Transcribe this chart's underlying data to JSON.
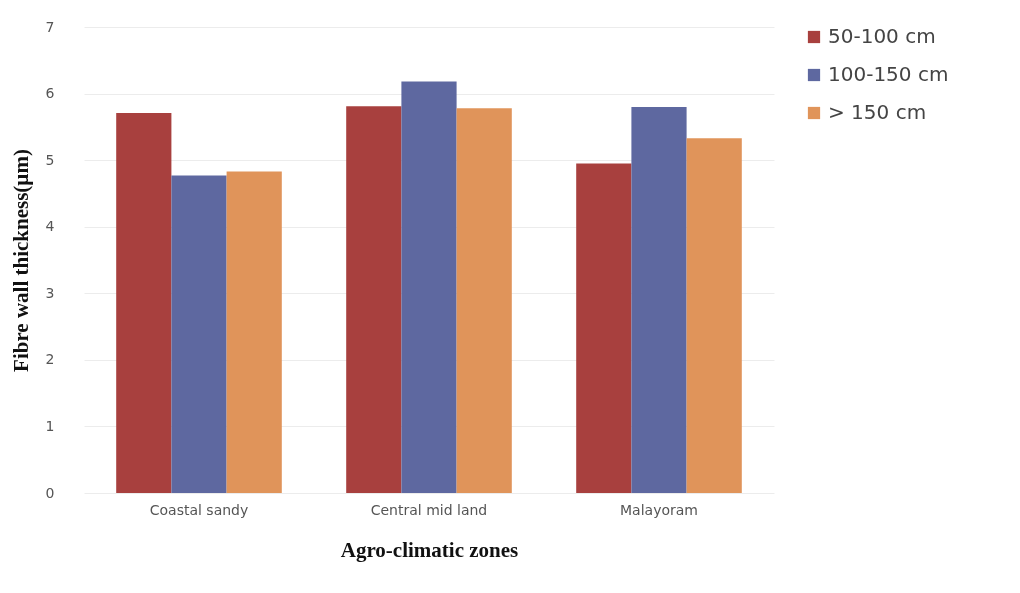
{
  "chart_data": {
    "type": "bar",
    "xlabel": "Agro-climatic zones",
    "ylabel": "Fibre wall thickness(µm)",
    "categories": [
      "Coastal sandy",
      "Central mid land",
      "Malayoram"
    ],
    "series": [
      {
        "name": "50-100 cm",
        "color": "#a8403e",
        "values": [
          5.71,
          5.81,
          4.95
        ]
      },
      {
        "name": "100-150 cm",
        "color": "#5e68a0",
        "values": [
          4.77,
          6.18,
          5.8
        ]
      },
      {
        "name": "> 150 cm",
        "color": "#e0945a",
        "values": [
          4.83,
          5.78,
          5.33
        ]
      }
    ],
    "ylim": [
      0,
      7
    ],
    "yticks": [
      0,
      1,
      2,
      3,
      4,
      5,
      6,
      7
    ],
    "grid": "y",
    "legend": "right"
  }
}
